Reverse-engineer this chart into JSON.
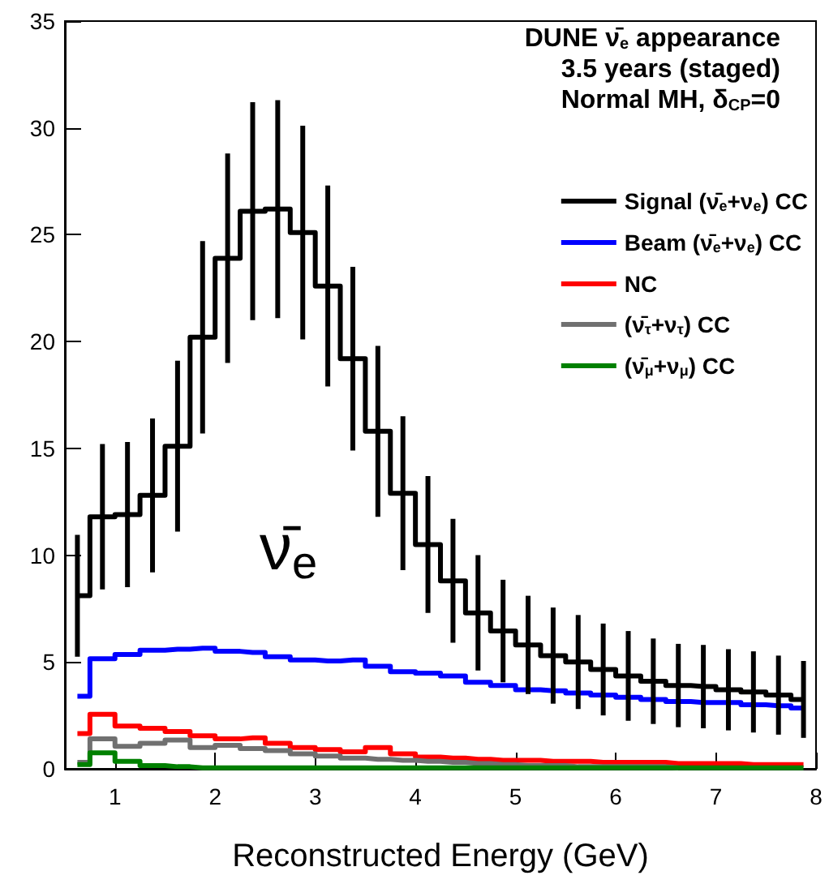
{
  "chart_data": {
    "type": "step",
    "xlabel": "Reconstructed Energy (GeV)",
    "annotations": [
      "DUNE ν̄$_{e}$ appearance",
      "3.5 years (staged)",
      "Normal MH, δ$_{CP}$=0",
      "ν̄$_{e}$"
    ],
    "x": [
      0.625,
      0.875,
      1.125,
      1.375,
      1.625,
      1.875,
      2.125,
      2.375,
      2.625,
      2.875,
      3.125,
      3.375,
      3.625,
      3.875,
      4.125,
      4.375,
      4.625,
      4.875,
      5.125,
      5.375,
      5.625,
      5.875,
      6.125,
      6.375,
      6.625,
      6.875,
      7.125,
      7.375,
      7.625,
      7.875
    ],
    "series": [
      {
        "name": "Signal (ν̄$_{e}$+ν$_{e}$) CC",
        "color": "#000000",
        "values": [
          8.1,
          11.8,
          11.9,
          12.8,
          15.1,
          20.2,
          23.9,
          26.1,
          26.2,
          25.1,
          22.6,
          19.2,
          15.8,
          12.9,
          10.5,
          8.8,
          7.3,
          6.45,
          5.8,
          5.3,
          5.0,
          4.65,
          4.35,
          4.1,
          3.9,
          3.85,
          3.7,
          3.6,
          3.45,
          3.25
        ],
        "errors": [
          2.85,
          3.4,
          3.4,
          3.6,
          4.0,
          4.5,
          4.9,
          5.1,
          5.1,
          5.0,
          4.7,
          4.3,
          4.0,
          3.6,
          3.2,
          2.9,
          2.7,
          2.4,
          2.3,
          2.25,
          2.2,
          2.15,
          2.1,
          2.0,
          1.95,
          1.95,
          1.9,
          1.9,
          1.85,
          1.8
        ]
      },
      {
        "name": "Beam (ν̄$_{e}$+ν$_{e}$) CC",
        "color": "#0000ff",
        "values": [
          3.4,
          5.15,
          5.35,
          5.55,
          5.6,
          5.65,
          5.5,
          5.45,
          5.25,
          5.1,
          5.05,
          5.1,
          4.8,
          4.55,
          4.48,
          4.35,
          4.05,
          3.9,
          3.7,
          3.65,
          3.55,
          3.45,
          3.35,
          3.25,
          3.15,
          3.1,
          3.1,
          3.0,
          2.95,
          2.85
        ]
      },
      {
        "name": "NC",
        "color": "#ff0000",
        "values": [
          1.65,
          2.55,
          2.0,
          1.9,
          1.75,
          1.55,
          1.4,
          1.45,
          1.2,
          1.0,
          0.9,
          0.8,
          1.0,
          0.7,
          0.55,
          0.5,
          0.45,
          0.4,
          0.4,
          0.35,
          0.35,
          0.3,
          0.3,
          0.3,
          0.25,
          0.25,
          0.25,
          0.2,
          0.2,
          0.2
        ]
      },
      {
        "name": "(ν̄$_{τ}$+ν$_{τ}$) CC",
        "color": "#707070",
        "values": [
          0.3,
          1.4,
          1.05,
          1.2,
          1.35,
          1.0,
          1.1,
          0.95,
          0.85,
          0.7,
          0.6,
          0.5,
          0.45,
          0.4,
          0.35,
          0.3,
          0.25,
          0.2,
          0.15,
          0.15,
          0.1,
          0.1,
          0.1,
          0.1,
          0.05,
          null,
          null,
          null,
          null,
          null
        ]
      },
      {
        "name": "(ν̄$_{μ}$+ν$_{μ}$) CC",
        "color": "#008000",
        "values": [
          0.2,
          0.75,
          0.35,
          0.15,
          0.1,
          0.05,
          0.05,
          0.05,
          0.05,
          0.05,
          0.05,
          0.05,
          0.05,
          0.05,
          0.05,
          0.05,
          0.05,
          0.05,
          0.05,
          0.05,
          0.05,
          0.05,
          0.05,
          0.05,
          0.05,
          0.05,
          0.05,
          0.05,
          0.05,
          0.05
        ]
      }
    ],
    "xlim": [
      0.5,
      8
    ],
    "xticks": [
      1,
      2,
      3,
      4,
      5,
      6,
      7,
      8
    ],
    "ylim": [
      0,
      35
    ],
    "yticks": [
      0,
      5,
      10,
      15,
      20,
      25,
      30,
      35
    ],
    "grid": false,
    "legend": "top right",
    "line_style": "solid",
    "marker": "none"
  }
}
